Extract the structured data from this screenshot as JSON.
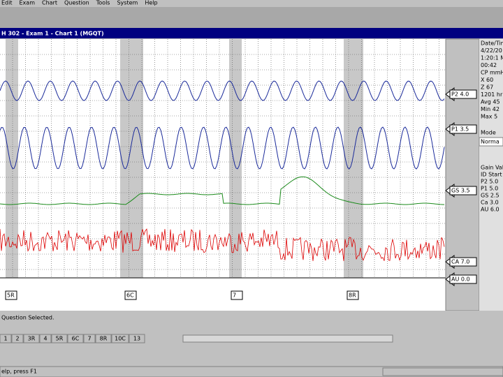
{
  "menu": [
    "Edit",
    "Exam",
    "Chart",
    "Question",
    "Tools",
    "System",
    "Help"
  ],
  "window_title": "H 302 - Exam 1 - Chart 1 (MGQT)",
  "right_panel": {
    "lines": [
      "Date/Tim",
      "4/22/20",
      "1:20:1 M",
      "00:42",
      "CP mmHg",
      "X 60",
      "Z 67",
      "1201 hr",
      "Avg 45",
      "Min 42",
      "Max 5"
    ],
    "mode_label": "Mode",
    "mode": "Norma",
    "gain_lines": [
      "Gain Valu",
      "ID Start",
      "P2 5.0",
      "P1 5.0",
      "GS 2.5",
      "Ca 3.0",
      "AU 6.0"
    ]
  },
  "channels": [
    "P2 4.0",
    "P1 3.5",
    "GS 3.5",
    "CA 7.0",
    "AU 0.0"
  ],
  "markers": [
    "5R",
    "6C",
    "7",
    "8R"
  ],
  "status": "Question Selected.",
  "tabs": [
    "1",
    "2",
    "3R",
    "4",
    "5R",
    "6C",
    "7",
    "8R",
    "10C",
    "13"
  ],
  "status_bar": "elp, press F1"
}
